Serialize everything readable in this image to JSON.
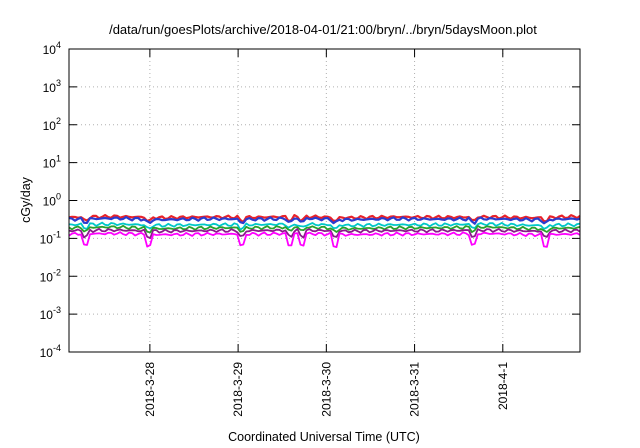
{
  "chart_data": {
    "type": "line",
    "title": "/data/run/goesPlots/archive/2018-04-01/21:00/bryn/../bryn/5daysMoon.plot",
    "xlabel": "Coordinated Universal Time (UTC)",
    "ylabel": "cGy/day",
    "y_scale": "log",
    "ylim_exponents": [
      -4,
      4
    ],
    "y_ticks": [
      {
        "base": "10",
        "exp": "-4"
      },
      {
        "base": "10",
        "exp": "-3"
      },
      {
        "base": "10",
        "exp": "-2"
      },
      {
        "base": "10",
        "exp": "-1"
      },
      {
        "base": "10",
        "exp": "0"
      },
      {
        "base": "10",
        "exp": "1"
      },
      {
        "base": "10",
        "exp": "2"
      },
      {
        "base": "10",
        "exp": "3"
      },
      {
        "base": "10",
        "exp": "4"
      }
    ],
    "xlim": [
      "2018-03-27T02:00",
      "2018-04-01T21:00"
    ],
    "x_ticks": [
      "2018-3-28",
      "2018-3-29",
      "2018-3-30",
      "2018-3-31",
      "2018-4-1"
    ],
    "grid": true,
    "series": [
      {
        "color": "#e8222a",
        "values": [
          0.36,
          0.38,
          0.35,
          0.37,
          0.36,
          0.38,
          0.35,
          0.37,
          0.36,
          0.37,
          0.35,
          0.38
        ]
      },
      {
        "color": "#2b3ccf",
        "values": [
          0.32,
          0.34,
          0.31,
          0.33,
          0.32,
          0.34,
          0.31,
          0.33,
          0.32,
          0.33,
          0.31,
          0.33
        ]
      },
      {
        "color": "#00c8c8",
        "values": [
          0.23,
          0.24,
          0.22,
          0.23,
          0.23,
          0.24,
          0.22,
          0.23,
          0.23,
          0.24,
          0.22,
          0.23
        ]
      },
      {
        "color": "#2ca02c",
        "values": [
          0.19,
          0.2,
          0.18,
          0.19,
          0.19,
          0.2,
          0.18,
          0.19,
          0.19,
          0.2,
          0.18,
          0.19
        ]
      },
      {
        "color": "#8b1a8b",
        "values": [
          0.16,
          0.165,
          0.155,
          0.16,
          0.16,
          0.165,
          0.155,
          0.16,
          0.16,
          0.165,
          0.155,
          0.16
        ]
      },
      {
        "color": "#ff00ff",
        "values": [
          0.13,
          0.135,
          0.125,
          0.13,
          0.13,
          0.135,
          0.125,
          0.13,
          0.13,
          0.135,
          0.125,
          0.13
        ]
      }
    ]
  }
}
